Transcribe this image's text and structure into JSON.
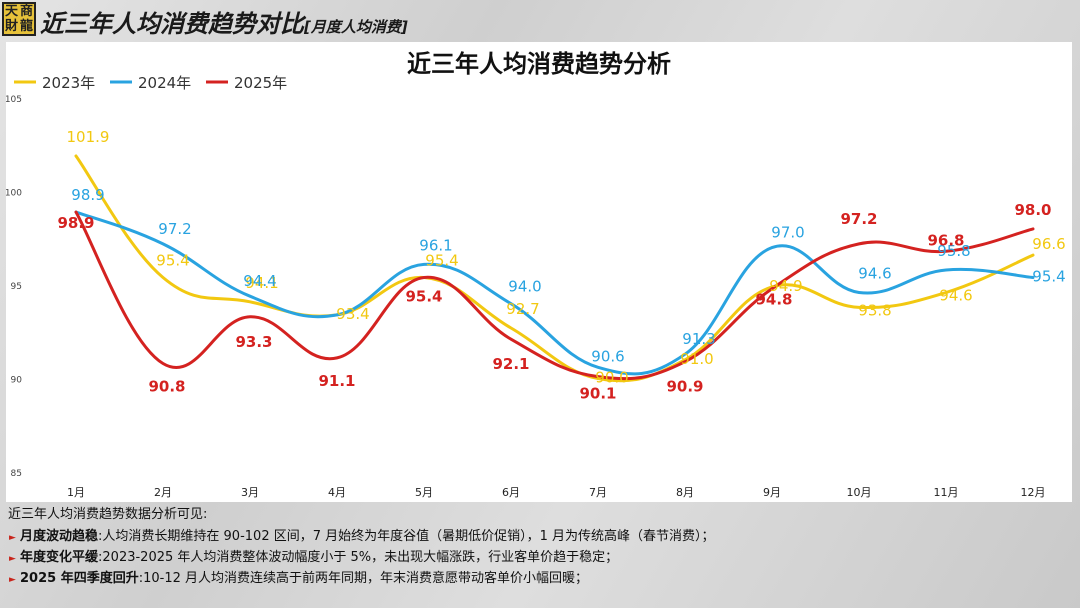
{
  "logo": {
    "chars": [
      "天",
      "商",
      "財",
      "龍"
    ]
  },
  "header": {
    "title": "近三年人均消费趋势对比",
    "subtitle": "[月度人均消费]"
  },
  "colors": {
    "2023年": "#f2c811",
    "2024年": "#29a3e0",
    "2025年": "#d42220",
    "accent": "#c8251c"
  },
  "chart_data": {
    "type": "line",
    "title": "近三年人均消费趋势分析",
    "categories": [
      "1月",
      "2月",
      "3月",
      "4月",
      "5月",
      "6月",
      "7月",
      "8月",
      "9月",
      "10月",
      "11月",
      "12月"
    ],
    "series": [
      {
        "name": "2023年",
        "values": [
          101.9,
          95.4,
          94.1,
          93.4,
          95.4,
          92.7,
          90.0,
          91.0,
          94.9,
          93.8,
          94.6,
          96.6
        ],
        "labels": [
          "101.9",
          "95.4",
          "94.1",
          "93.4",
          "95.4",
          "92.7",
          "90.0",
          "91.0",
          "94.9",
          "93.8",
          "94.6",
          "96.6"
        ]
      },
      {
        "name": "2024年",
        "values": [
          98.9,
          97.2,
          94.4,
          93.4,
          96.1,
          94.0,
          90.6,
          91.3,
          97.0,
          94.6,
          95.8,
          95.4
        ],
        "labels": [
          "98.9",
          "97.2",
          "94.4",
          "",
          "96.1",
          "94.0",
          "90.6",
          "91.3",
          "97.0",
          "94.6",
          "95.8",
          "95.4"
        ]
      },
      {
        "name": "2025年",
        "values": [
          98.9,
          90.8,
          93.3,
          91.1,
          95.4,
          92.1,
          90.1,
          90.9,
          94.8,
          97.2,
          96.8,
          98.0
        ],
        "labels": [
          "98.9",
          "90.8",
          "93.3",
          "91.1",
          "95.4",
          "92.1",
          "90.1",
          "90.9",
          "94.8",
          "97.2",
          "96.8",
          "98.0"
        ]
      }
    ],
    "yticks": [
      "85",
      "90",
      "95",
      "100",
      "105"
    ],
    "ylim": [
      85,
      105
    ],
    "grid": false,
    "legend": "top-left"
  },
  "notes": {
    "intro": "近三年人均消费趋势数据分析可见:",
    "items": [
      {
        "head": "月度波动趋稳",
        "sep": ":",
        "text": "人均消费长期维持在 90-102 区间，7 月始终为年度谷值（暑期低价促销），1 月为传统高峰（春节消费）；"
      },
      {
        "head": "年度变化平缓",
        "sep": ":",
        "text": "2023-2025 年人均消费整体波动幅度小于 5%，未出现大幅涨跌，行业客单价趋于稳定；"
      },
      {
        "head": "2025 年四季度回升",
        "sep": ":",
        "text": "10-12 月人均消费连续高于前两年同期，年末消费意愿带动客单价小幅回暖；"
      }
    ]
  }
}
